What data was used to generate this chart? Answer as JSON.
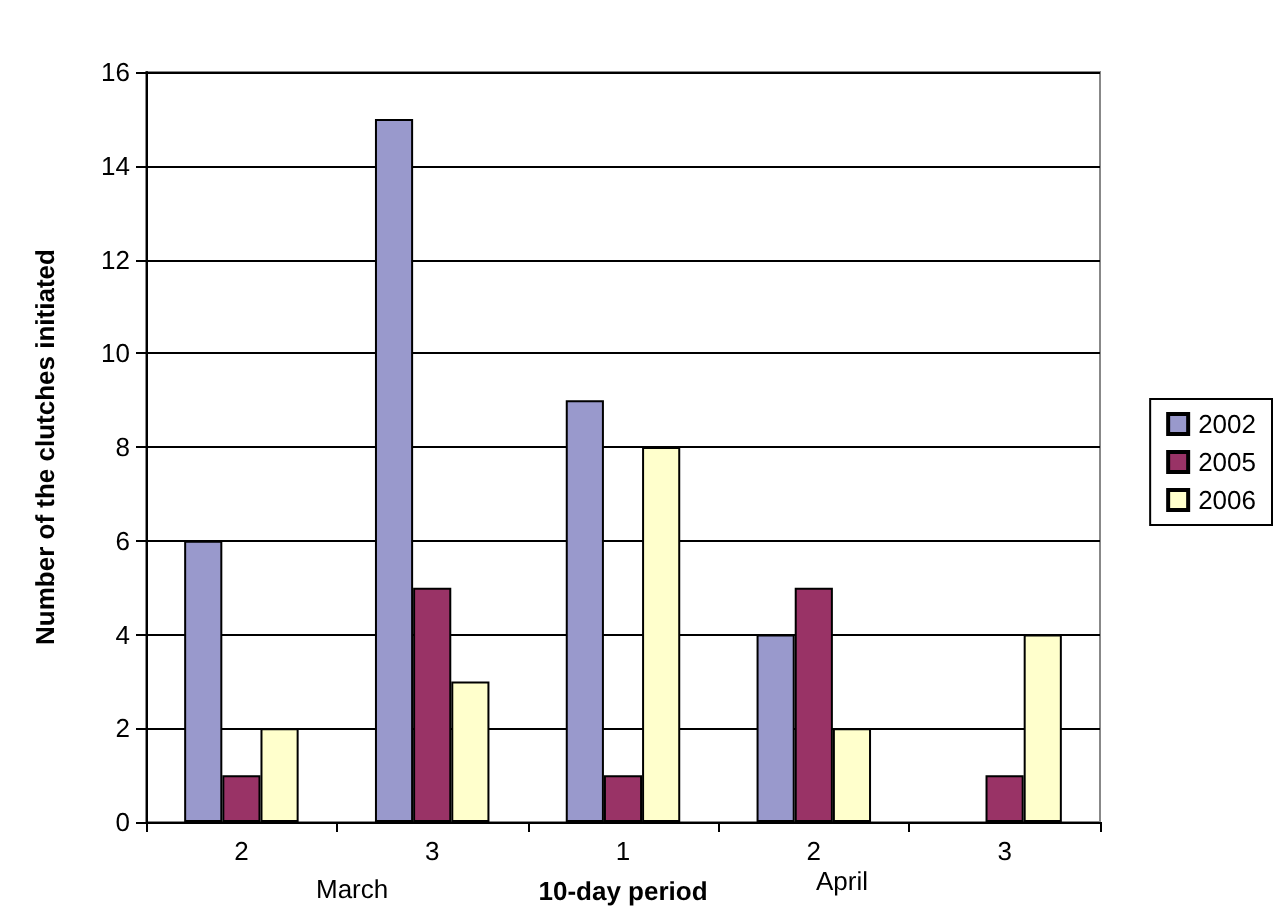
{
  "chart_data": {
    "type": "bar",
    "xlabel": "10-day period",
    "ylabel": "Number of the clutches initiated",
    "categories": [
      "2",
      "3",
      "1",
      "2",
      "3"
    ],
    "series": [
      {
        "name": "2002",
        "color": "#9999cc",
        "values": [
          6,
          15,
          9,
          4,
          null
        ]
      },
      {
        "name": "2005",
        "color": "#993366",
        "values": [
          1,
          5,
          1,
          5,
          1
        ]
      },
      {
        "name": "2006",
        "color": "#ffffcc",
        "values": [
          2,
          3,
          8,
          2,
          4
        ]
      }
    ],
    "ylim": [
      0,
      16
    ],
    "yticks": [
      0,
      2,
      4,
      6,
      8,
      10,
      12,
      14,
      16
    ],
    "grid": "y",
    "legend": "right",
    "annotations": [
      "March",
      "April"
    ]
  }
}
